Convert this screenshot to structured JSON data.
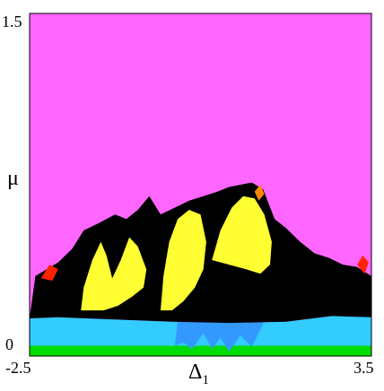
{
  "chart_data": {
    "type": "heatmap",
    "title": "",
    "xlabel": "Δ",
    "xlabel_subscript": "1",
    "ylabel": "μ",
    "xlim": [
      -2.5,
      3.5
    ],
    "ylim": [
      0,
      1.5
    ],
    "x_tick_labels": [
      "-2.5",
      "3.5"
    ],
    "y_tick_labels": [
      "1.5",
      "0"
    ],
    "grid": false,
    "legend": "none",
    "colors": {
      "background_region": "#ff66ff",
      "black_region": "#000000",
      "yellow_region": "#ffff33",
      "cyan_region": "#33ccff",
      "blue_region": "#3399ff",
      "green_region": "#00dd00",
      "red_region": "#ff2200",
      "orange_region": "#ff8800",
      "frame": "#000000"
    },
    "regions": [
      {
        "name": "green",
        "color_key": "green_region",
        "polygon": [
          [
            -2.5,
            0.0
          ],
          [
            3.5,
            0.0
          ],
          [
            3.5,
            0.045
          ],
          [
            -2.5,
            0.045
          ]
        ]
      },
      {
        "name": "cyan",
        "color_key": "cyan_region",
        "polygon": [
          [
            -2.5,
            0.045
          ],
          [
            3.5,
            0.045
          ],
          [
            3.5,
            0.17
          ],
          [
            2.8,
            0.175
          ],
          [
            2.0,
            0.15
          ],
          [
            1.0,
            0.145
          ],
          [
            0.0,
            0.15
          ],
          [
            -1.0,
            0.16
          ],
          [
            -2.0,
            0.17
          ],
          [
            -2.5,
            0.165
          ]
        ]
      },
      {
        "name": "blue",
        "color_key": "blue_region",
        "polygon": [
          [
            0.05,
            0.045
          ],
          [
            0.2,
            0.06
          ],
          [
            0.35,
            0.03
          ],
          [
            0.55,
            0.1
          ],
          [
            0.7,
            0.03
          ],
          [
            0.85,
            0.08
          ],
          [
            1.0,
            0.02
          ],
          [
            1.2,
            0.09
          ],
          [
            1.4,
            0.04
          ],
          [
            1.6,
            0.14
          ],
          [
            1.5,
            0.28
          ],
          [
            1.25,
            0.42
          ],
          [
            0.9,
            0.4
          ],
          [
            0.6,
            0.3
          ],
          [
            0.3,
            0.22
          ],
          [
            0.1,
            0.15
          ]
        ]
      },
      {
        "name": "black",
        "color_key": "black_region",
        "polygon": [
          [
            -2.5,
            0.165
          ],
          [
            -2.4,
            0.35
          ],
          [
            -2.2,
            0.38
          ],
          [
            -2.0,
            0.41
          ],
          [
            -1.75,
            0.47
          ],
          [
            -1.55,
            0.55
          ],
          [
            -1.3,
            0.58
          ],
          [
            -1.0,
            0.62
          ],
          [
            -0.8,
            0.6
          ],
          [
            -0.6,
            0.64
          ],
          [
            -0.4,
            0.7
          ],
          [
            -0.2,
            0.62
          ],
          [
            0.05,
            0.65
          ],
          [
            0.3,
            0.68
          ],
          [
            0.55,
            0.7
          ],
          [
            0.8,
            0.72
          ],
          [
            1.0,
            0.74
          ],
          [
            1.2,
            0.75
          ],
          [
            1.4,
            0.76
          ],
          [
            1.6,
            0.73
          ],
          [
            1.8,
            0.6
          ],
          [
            2.0,
            0.56
          ],
          [
            2.25,
            0.5
          ],
          [
            2.5,
            0.45
          ],
          [
            2.75,
            0.43
          ],
          [
            3.0,
            0.4
          ],
          [
            3.25,
            0.39
          ],
          [
            3.5,
            0.35
          ],
          [
            3.5,
            0.17
          ],
          [
            2.8,
            0.175
          ],
          [
            2.0,
            0.15
          ],
          [
            1.0,
            0.145
          ],
          [
            0.0,
            0.15
          ],
          [
            -1.0,
            0.16
          ],
          [
            -2.0,
            0.17
          ]
        ]
      },
      {
        "name": "yellow-left",
        "color_key": "yellow_region",
        "polygon": [
          [
            -1.6,
            0.2
          ],
          [
            -1.55,
            0.3
          ],
          [
            -1.4,
            0.42
          ],
          [
            -1.25,
            0.5
          ],
          [
            -1.15,
            0.44
          ],
          [
            -1.05,
            0.34
          ],
          [
            -0.9,
            0.42
          ],
          [
            -0.75,
            0.52
          ],
          [
            -0.6,
            0.48
          ],
          [
            -0.45,
            0.38
          ],
          [
            -0.5,
            0.3
          ],
          [
            -0.7,
            0.26
          ],
          [
            -0.95,
            0.22
          ],
          [
            -1.2,
            0.2
          ]
        ]
      },
      {
        "name": "yellow-center",
        "color_key": "yellow_region",
        "polygon": [
          [
            -0.2,
            0.2
          ],
          [
            -0.15,
            0.35
          ],
          [
            -0.05,
            0.5
          ],
          [
            0.1,
            0.6
          ],
          [
            0.3,
            0.64
          ],
          [
            0.5,
            0.62
          ],
          [
            0.6,
            0.5
          ],
          [
            0.55,
            0.38
          ],
          [
            0.4,
            0.3
          ],
          [
            0.2,
            0.24
          ],
          [
            0.0,
            0.2
          ]
        ]
      },
      {
        "name": "yellow-right",
        "color_key": "yellow_region",
        "polygon": [
          [
            0.7,
            0.42
          ],
          [
            0.85,
            0.55
          ],
          [
            1.05,
            0.65
          ],
          [
            1.25,
            0.7
          ],
          [
            1.45,
            0.69
          ],
          [
            1.62,
            0.62
          ],
          [
            1.75,
            0.5
          ],
          [
            1.72,
            0.4
          ],
          [
            1.55,
            0.36
          ],
          [
            1.3,
            0.38
          ],
          [
            1.0,
            0.4
          ]
        ]
      },
      {
        "name": "red-left",
        "color_key": "red_region",
        "polygon": [
          [
            -2.3,
            0.34
          ],
          [
            -2.15,
            0.4
          ],
          [
            -2.0,
            0.38
          ],
          [
            -2.1,
            0.33
          ]
        ]
      },
      {
        "name": "red-right",
        "color_key": "red_region",
        "polygon": [
          [
            3.25,
            0.4
          ],
          [
            3.35,
            0.44
          ],
          [
            3.45,
            0.41
          ],
          [
            3.38,
            0.36
          ]
        ]
      },
      {
        "name": "orange-mid",
        "color_key": "orange_region",
        "polygon": [
          [
            1.45,
            0.72
          ],
          [
            1.55,
            0.75
          ],
          [
            1.62,
            0.71
          ],
          [
            1.52,
            0.68
          ]
        ]
      }
    ]
  }
}
